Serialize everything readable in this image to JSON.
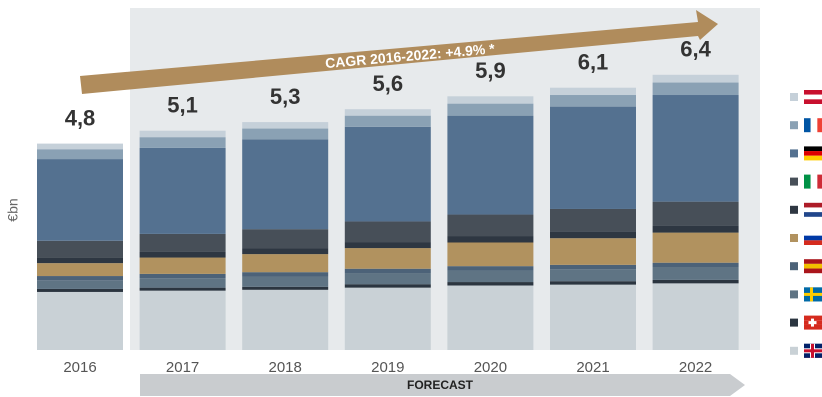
{
  "chart_data": {
    "type": "stacked-bar",
    "y_label": "€bn",
    "annotation": "CAGR 2016-2022: +4.9% *",
    "forecast_label": "FORECAST",
    "categories": [
      "2016",
      "2017",
      "2018",
      "2019",
      "2020",
      "2021",
      "2022"
    ],
    "series": [
      {
        "color": "#c9d1d6",
        "values": [
          1.35,
          1.38,
          1.4,
          1.45,
          1.5,
          1.52,
          1.55
        ]
      },
      {
        "color": "#2b3540",
        "values": [
          0.07,
          0.07,
          0.07,
          0.08,
          0.08,
          0.08,
          0.08
        ]
      },
      {
        "color": "#5f7484",
        "values": [
          0.2,
          0.22,
          0.24,
          0.26,
          0.27,
          0.28,
          0.3
        ]
      },
      {
        "color": "#4c6278",
        "values": [
          0.1,
          0.1,
          0.1,
          0.1,
          0.1,
          0.1,
          0.1
        ]
      },
      {
        "color": "#b1925f",
        "values": [
          0.3,
          0.38,
          0.42,
          0.48,
          0.55,
          0.62,
          0.7
        ]
      },
      {
        "color": "#2e3742",
        "values": [
          0.12,
          0.13,
          0.13,
          0.14,
          0.15,
          0.16,
          0.17
        ]
      },
      {
        "color": "#474f58",
        "values": [
          0.4,
          0.42,
          0.45,
          0.48,
          0.5,
          0.52,
          0.55
        ]
      },
      {
        "color": "#547190",
        "values": [
          1.9,
          2.0,
          2.09,
          2.2,
          2.3,
          2.38,
          2.48
        ]
      },
      {
        "color": "#8aa1b4",
        "values": [
          0.23,
          0.25,
          0.25,
          0.26,
          0.28,
          0.27,
          0.29
        ]
      },
      {
        "color": "#c5d0d9",
        "values": [
          0.13,
          0.15,
          0.15,
          0.15,
          0.17,
          0.17,
          0.18
        ]
      }
    ],
    "totals": {
      "values": [
        4.8,
        5.1,
        5.3,
        5.6,
        5.9,
        6.1,
        6.4
      ],
      "value_labels": [
        "4,8",
        "5,1",
        "5,3",
        "5,6",
        "5,9",
        "6,1",
        "6,4"
      ]
    }
  }
}
